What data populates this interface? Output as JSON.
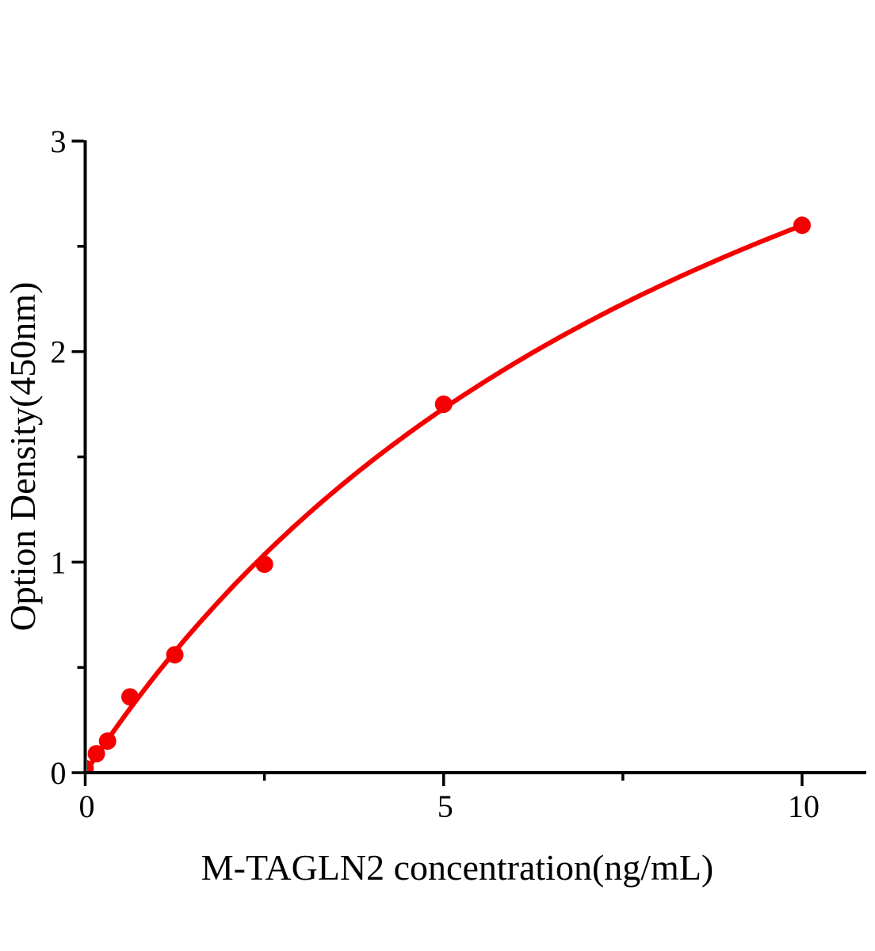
{
  "figure": {
    "background_color": "#ffffff",
    "axis_color": "#000000",
    "text_color": "#000000",
    "accent_color": "#f50000"
  },
  "chart_data": {
    "type": "scatter",
    "title": "",
    "xlabel": "M-TAGLN2 concentration(ng/mL)",
    "ylabel": "Option Density(450nm)",
    "xlim": [
      0,
      10.9
    ],
    "ylim": [
      0,
      3
    ],
    "grid": false,
    "legend": "none",
    "x_ticks_major": [
      0,
      5,
      10
    ],
    "x_tick_labels": [
      "0",
      "5",
      "10"
    ],
    "x_ticks_minor": [
      2.5,
      7.5
    ],
    "y_ticks_major": [
      0,
      1,
      2,
      3
    ],
    "y_tick_labels": [
      "0",
      "1",
      "2",
      "3"
    ],
    "y_ticks_minor": [
      0.5,
      1.5,
      2.5
    ],
    "series": [
      {
        "name": "standard-points",
        "kind": "scatter",
        "color": "#f50000",
        "marker_radius": 11,
        "points": [
          {
            "x": 0,
            "y": 0.02
          },
          {
            "x": 0.156,
            "y": 0.09
          },
          {
            "x": 0.312,
            "y": 0.15
          },
          {
            "x": 0.625,
            "y": 0.36
          },
          {
            "x": 1.25,
            "y": 0.56
          },
          {
            "x": 2.5,
            "y": 0.99
          },
          {
            "x": 5,
            "y": 1.75
          },
          {
            "x": 10,
            "y": 2.6
          }
        ]
      },
      {
        "name": "fit-curve",
        "kind": "line",
        "color": "#f50000",
        "stroke_width": 6,
        "fit": {
          "model": "michaelis_menten",
          "a": 5.23,
          "b": 10.12,
          "x_start": 0,
          "x_end": 10
        }
      }
    ]
  }
}
